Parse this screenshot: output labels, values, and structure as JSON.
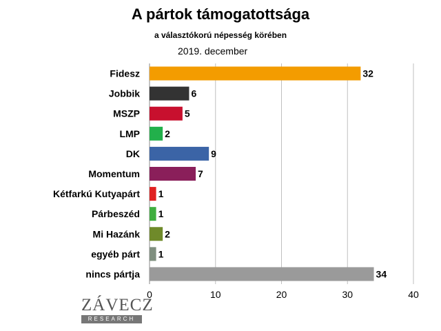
{
  "chart_data": {
    "type": "bar",
    "orientation": "horizontal",
    "title": "A pártok támogatottsága",
    "subtitle": "a választókorú népesség körében",
    "date_label": "2019. december",
    "categories": [
      "Fidesz",
      "Jobbik",
      "MSZP",
      "LMP",
      "DK",
      "Momentum",
      "Kétfarkú Kutyapárt",
      "Párbeszéd",
      "Mi Hazánk",
      "egyéb párt",
      "nincs pártja"
    ],
    "values": [
      32,
      6,
      5,
      2,
      9,
      7,
      1,
      1,
      2,
      1,
      34
    ],
    "colors": [
      "#f39c00",
      "#333333",
      "#c8102e",
      "#22b04b",
      "#3b64a6",
      "#8a1f5a",
      "#e02020",
      "#3fae3f",
      "#6f8a2a",
      "#7f8f7f",
      "#9a9a9a"
    ],
    "xlim": [
      0,
      40
    ],
    "xticks": [
      0,
      10,
      20,
      30,
      40
    ],
    "grid": true,
    "xlabel": "",
    "ylabel": ""
  },
  "logo": {
    "text": "ZÁVECZ",
    "subtext": "RESEARCH"
  }
}
